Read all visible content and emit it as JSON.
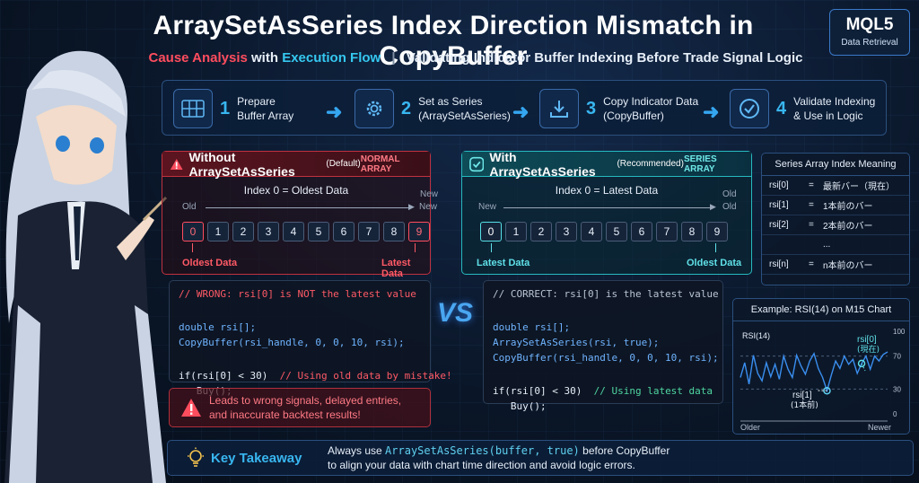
{
  "header": {
    "title": "ArraySetAsSeries Index Direction Mismatch in CopyBuffer",
    "subtitle_cause": "Cause Analysis",
    "subtitle_with": "with",
    "subtitle_flow": "Execution Flow",
    "subtitle_sep": "|",
    "subtitle_rest": "Validating Indicator Buffer Indexing Before Trade Signal Logic",
    "badge_main": "MQL5",
    "badge_sub": "Data Retrieval"
  },
  "flow": {
    "steps": [
      {
        "num": "1",
        "line1": "Prepare",
        "line2": "Buffer Array",
        "icon": "grid-icon"
      },
      {
        "num": "2",
        "line1": "Set as Series",
        "line2": "(ArraySetAsSeries)",
        "icon": "gear-icon"
      },
      {
        "num": "3",
        "line1": "Copy Indicator Data",
        "line2": "(CopyBuffer)",
        "icon": "download-icon"
      },
      {
        "num": "4",
        "line1": "Validate Indexing",
        "line2": "& Use in Logic",
        "icon": "check-circle-icon"
      }
    ]
  },
  "left": {
    "title": "Without ArraySetAsSeries",
    "title_small": "(Default)",
    "tag": "NORMAL ARRAY",
    "index_note": "Index 0 = Oldest Data",
    "old": "Old",
    "new": "New",
    "new_top": "New",
    "cells": [
      "0",
      "1",
      "2",
      "3",
      "4",
      "5",
      "6",
      "7",
      "8",
      "9"
    ],
    "cap_left": "Oldest Data",
    "cap_right": "Latest Data",
    "code": {
      "l1": "// WRONG: rsi[0] is NOT the latest value",
      "l2": "double rsi[];",
      "l3": "CopyBuffer(rsi_handle, 0, 0, 10, rsi);",
      "l4a": "if(rsi[0] < 30)",
      "l4b": "// Using old data by mistake!",
      "l5": "Buy();"
    },
    "warn_l1": "Leads to wrong signals, delayed entries,",
    "warn_l2": "and inaccurate backtest results!"
  },
  "vs": "VS",
  "right": {
    "title": "With ArraySetAsSeries",
    "title_small": "(Recommended)",
    "tag": "SERIES ARRAY",
    "index_note": "Index 0 = Latest Data",
    "new": "New",
    "old": "Old",
    "old_top": "Old",
    "cells": [
      "0",
      "1",
      "2",
      "3",
      "4",
      "5",
      "6",
      "7",
      "8",
      "9"
    ],
    "cap_left": "Latest Data",
    "cap_right": "Oldest Data",
    "code": {
      "l1": "// CORRECT: rsi[0] is the latest value",
      "l2": "double rsi[];",
      "l3": "ArraySetAsSeries(rsi, true);",
      "l4": "CopyBuffer(rsi_handle, 0, 0, 10, rsi);",
      "l5a": "if(rsi[0] < 30)",
      "l5b": "// Using latest data",
      "l6": "Buy();"
    }
  },
  "table": {
    "title": "Series Array Index Meaning",
    "rows": [
      {
        "k": "rsi[0]",
        "e": "=",
        "v": "最新バー（現在）"
      },
      {
        "k": "rsi[1]",
        "e": "=",
        "v": "1本前のバー"
      },
      {
        "k": "rsi[2]",
        "e": "=",
        "v": "2本前のバー"
      },
      {
        "k": "",
        "e": "",
        "v": "..."
      },
      {
        "k": "rsi[n]",
        "e": "=",
        "v": "n本前のバー"
      }
    ]
  },
  "rsi_chart": {
    "title": "Example: RSI(14) on M15 Chart",
    "series_label": "RSI(14)",
    "ticks": [
      "100",
      "70",
      "30",
      "0"
    ],
    "x_left": "Older",
    "x_right": "Newer",
    "label0_a": "rsi[0]",
    "label0_b": "(現在)",
    "label1_a": "rsi[1]",
    "label1_b": "(1本前)",
    "colors": {
      "line": "#3a8ef0",
      "threshold": "#4a5d78"
    }
  },
  "chart_data": {
    "type": "line",
    "title": "Example: RSI(14) on M15 Chart",
    "series": [
      {
        "name": "RSI(14)",
        "values": [
          44,
          62,
          36,
          71,
          49,
          40,
          62,
          45,
          60,
          42,
          70,
          54,
          44,
          71,
          58,
          48,
          64,
          73,
          55,
          44,
          28,
          47,
          64,
          55,
          70,
          60,
          66,
          49,
          61,
          70,
          54,
          70,
          64,
          72,
          75
        ]
      }
    ],
    "xlabel_left": "Older",
    "xlabel_right": "Newer",
    "ylim": [
      0,
      100
    ],
    "yticks": [
      0,
      30,
      70,
      100
    ]
  },
  "takeaway": {
    "label": "Key Takeaway",
    "t1a": "Always use",
    "t1code": "ArraySetAsSeries(buffer, true)",
    "t1b": "before CopyBuffer",
    "t2": "to align your data with chart time direction and avoid logic errors."
  }
}
